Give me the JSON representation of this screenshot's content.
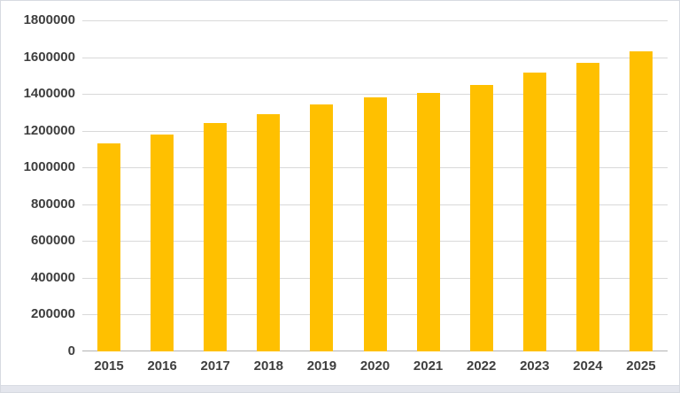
{
  "chart_data": {
    "type": "bar",
    "title": "",
    "xlabel": "",
    "ylabel": "",
    "categories": [
      "2015",
      "2016",
      "2017",
      "2018",
      "2019",
      "2020",
      "2021",
      "2022",
      "2023",
      "2024",
      "2025"
    ],
    "values": [
      1130000,
      1180000,
      1240000,
      1290000,
      1345000,
      1380000,
      1405000,
      1450000,
      1515000,
      1570000,
      1630000
    ],
    "ylim": [
      0,
      1800000
    ],
    "y_tick_step": 200000,
    "y_tick_labels": [
      "0",
      "200000",
      "400000",
      "600000",
      "800000",
      "1000000",
      "1200000",
      "1400000",
      "1600000",
      "1800000"
    ],
    "grid": true,
    "legend": false,
    "bar_color": "#ffc000",
    "gridline_color": "#d9d9d9",
    "axis_line_color": "#b3b3b3",
    "label_color": "#3f3f3f"
  }
}
